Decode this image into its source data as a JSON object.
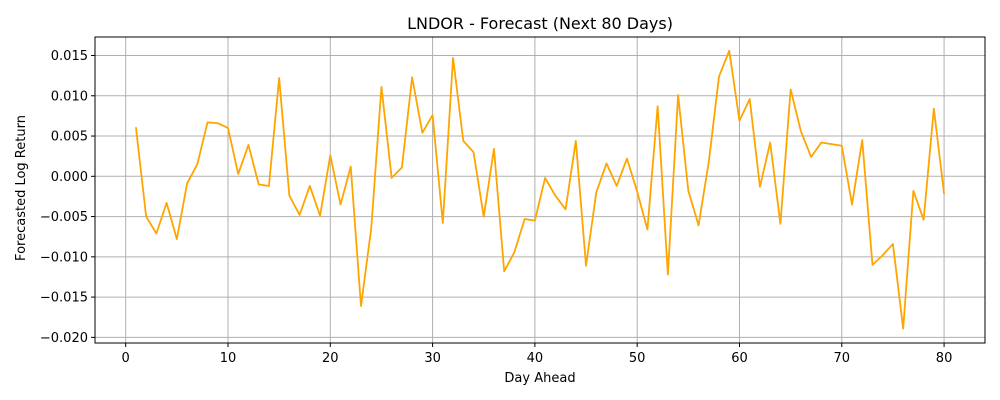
{
  "chart_data": {
    "type": "line",
    "title": "LNDOR - Forecast (Next 80 Days)",
    "xlabel": "Day Ahead",
    "ylabel": "Forecasted Log Return",
    "xlim": [
      -3,
      84
    ],
    "ylim": [
      -0.0207,
      0.0173
    ],
    "xticks": [
      0,
      10,
      20,
      30,
      40,
      50,
      60,
      70,
      80
    ],
    "xtick_labels": [
      "0",
      "10",
      "20",
      "30",
      "40",
      "50",
      "60",
      "70",
      "80"
    ],
    "yticks": [
      -0.02,
      -0.015,
      -0.01,
      -0.005,
      0.0,
      0.005,
      0.01,
      0.015
    ],
    "ytick_labels": [
      "−0.020",
      "−0.015",
      "−0.010",
      "−0.005",
      "0.000",
      "0.005",
      "0.010",
      "0.015"
    ],
    "grid": true,
    "color": "#ffa500",
    "series": [
      {
        "x": [
          1,
          2,
          3,
          4,
          5,
          6,
          7,
          8,
          9,
          10,
          11,
          12,
          13,
          14,
          15,
          16,
          17,
          18,
          19,
          20,
          21,
          22,
          23,
          24,
          25,
          26,
          27,
          28,
          29,
          30,
          31,
          32,
          33,
          34,
          35,
          36,
          37,
          38,
          39,
          40,
          41,
          42,
          43,
          44,
          45,
          46,
          47,
          48,
          49,
          50,
          51,
          52,
          53,
          54,
          55,
          56,
          57,
          58,
          59,
          60,
          61,
          62,
          63,
          64,
          65,
          66,
          67,
          68,
          69,
          70,
          71,
          72,
          73,
          74,
          75,
          76,
          77,
          78,
          79,
          80
        ],
        "values": [
          0.0061,
          -0.005,
          -0.0071,
          -0.0033,
          -0.0078,
          -0.0009,
          0.0015,
          0.0067,
          0.0066,
          0.006,
          0.0003,
          0.0039,
          -0.001,
          -0.0012,
          0.0122,
          -0.0024,
          -0.0048,
          -0.0012,
          -0.0049,
          0.0026,
          -0.0035,
          0.0012,
          -0.0161,
          -0.0065,
          0.0111,
          -0.0002,
          0.0011,
          0.0123,
          0.0054,
          0.0076,
          -0.0058,
          0.0147,
          0.0044,
          0.003,
          -0.005,
          0.0034,
          -0.0118,
          -0.0094,
          -0.0053,
          -0.0055,
          -0.0002,
          -0.0024,
          -0.0041,
          0.0044,
          -0.0111,
          -0.002,
          0.0016,
          -0.0012,
          0.0022,
          -0.0019,
          -0.0066,
          0.0087,
          -0.0122,
          0.0101,
          -0.0018,
          -0.0061,
          0.0018,
          0.0124,
          0.0156,
          0.0069,
          0.0096,
          -0.0013,
          0.0042,
          -0.0059,
          0.0108,
          0.0056,
          0.0024,
          0.0042,
          0.004,
          0.0038,
          -0.0035,
          0.0045,
          -0.011,
          -0.0098,
          -0.0084,
          -0.0189,
          -0.0018,
          -0.0054,
          0.0084,
          -0.0022
        ]
      }
    ]
  }
}
